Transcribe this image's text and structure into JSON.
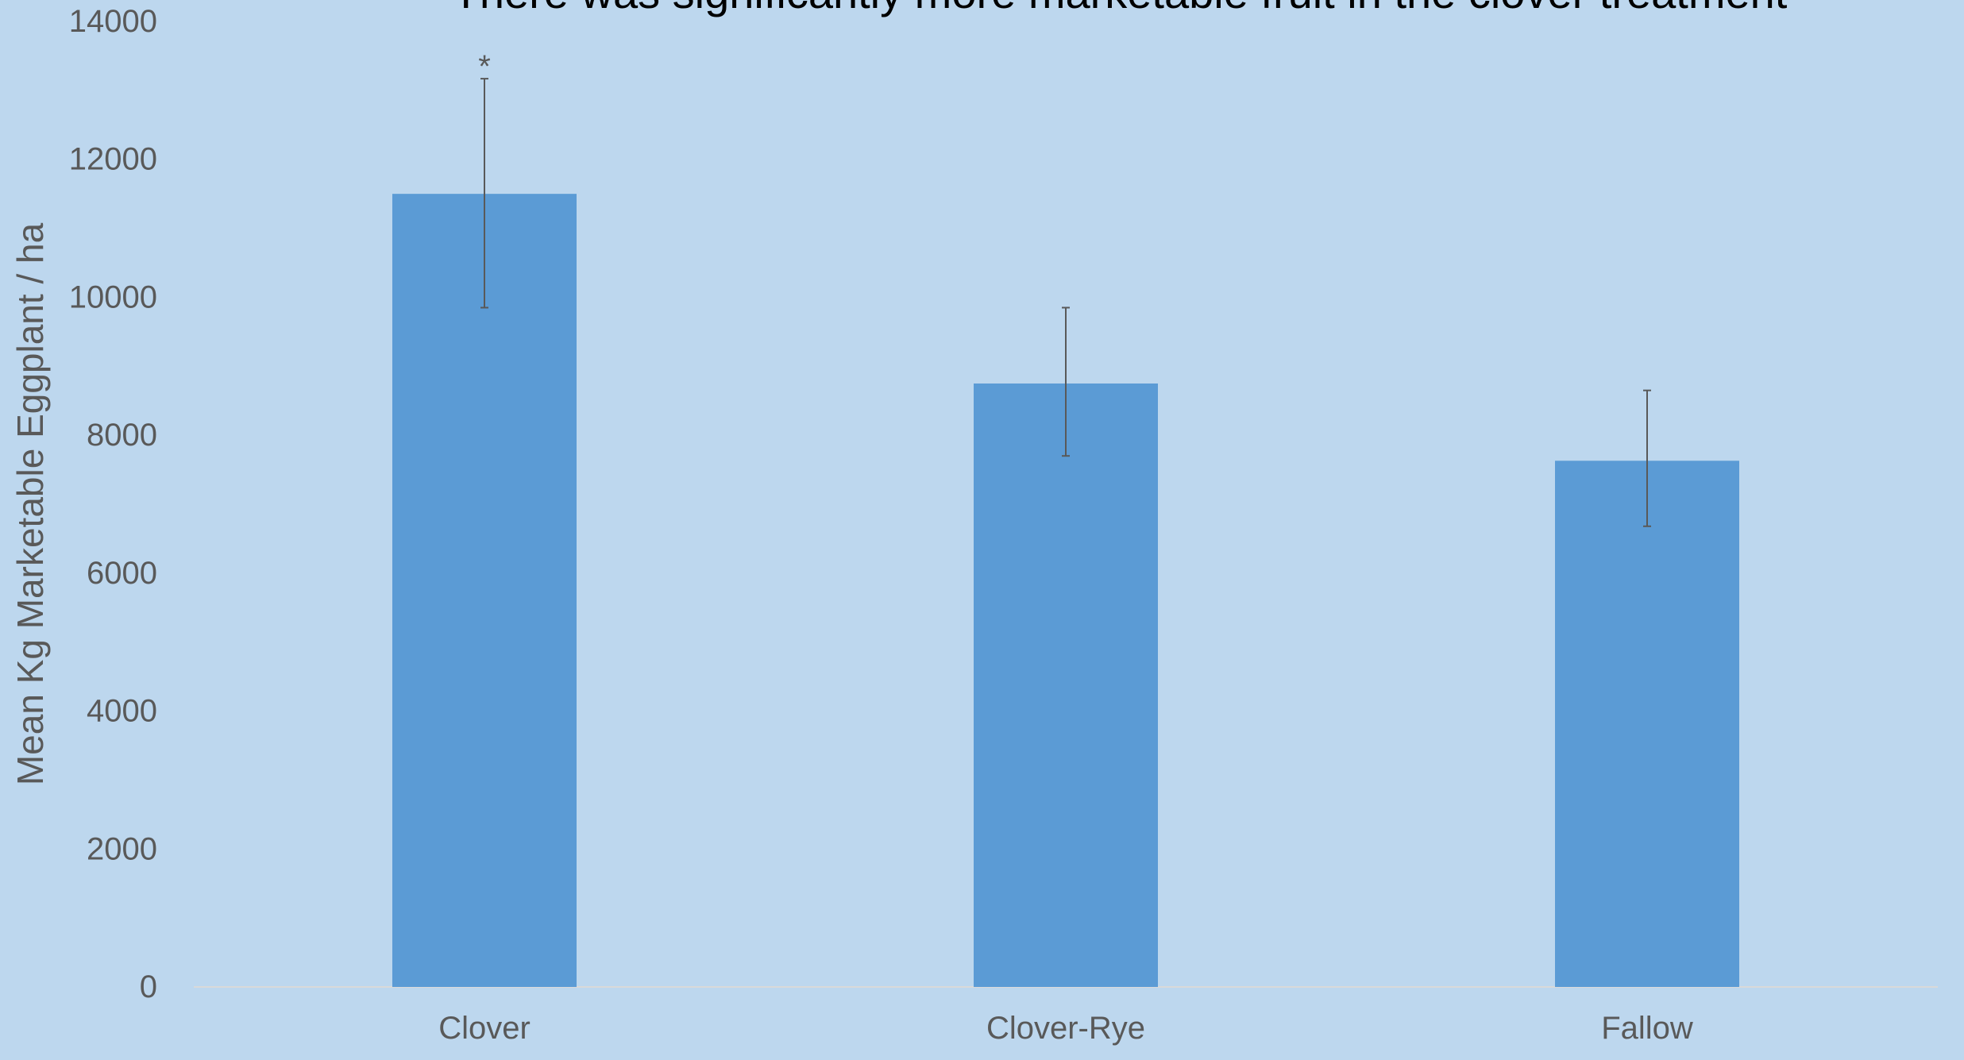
{
  "chart_data": {
    "type": "bar",
    "title": "There was significantly more marketable fruit in the clover treatment",
    "xlabel": "",
    "ylabel": "Mean Kg Marketable Eggplant / ha",
    "categories": [
      "Clover",
      "Clover-Rye",
      "Fallow"
    ],
    "values": [
      11500,
      8750,
      7630
    ],
    "error_high": [
      13170,
      9850,
      8650
    ],
    "error_low": [
      9850,
      7700,
      6680
    ],
    "annotations": [
      "*",
      "",
      ""
    ],
    "ylim": [
      0,
      14000
    ],
    "yticks": [
      0,
      2000,
      4000,
      6000,
      8000,
      10000,
      12000,
      14000
    ],
    "ytick_labels": [
      "0",
      "2000",
      "4000",
      "6000",
      "8000",
      "10000",
      "12000",
      "14000"
    ],
    "grid": false,
    "legend": "none",
    "colors": {
      "background": "#bdd7ee",
      "bar": "#5b9bd5",
      "error_bar": "#595959",
      "axis_text": "#595959",
      "title_text": "#000000",
      "baseline": "#d9d9d9"
    }
  }
}
